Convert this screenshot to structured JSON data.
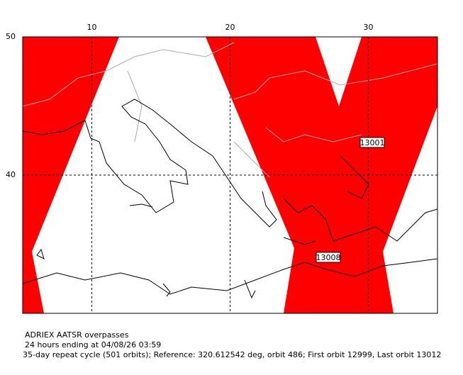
{
  "map": {
    "title": "ADRIEX AATSR overpasses",
    "period": "24 hours ending at 04/08/26 03:59",
    "cycle": "35-day repeat cycle (501 orbits); Reference: 320.612542 deg, orbit 486; First orbit 12999, Last orbit 13012",
    "xlim": [
      5,
      35
    ],
    "ylim": [
      30,
      50
    ],
    "xticks": [
      10,
      20,
      30
    ],
    "yticks": [
      40,
      50
    ],
    "grid": true,
    "swath_color": "#ff0000",
    "orbits": [
      "13001",
      "13008"
    ]
  }
}
